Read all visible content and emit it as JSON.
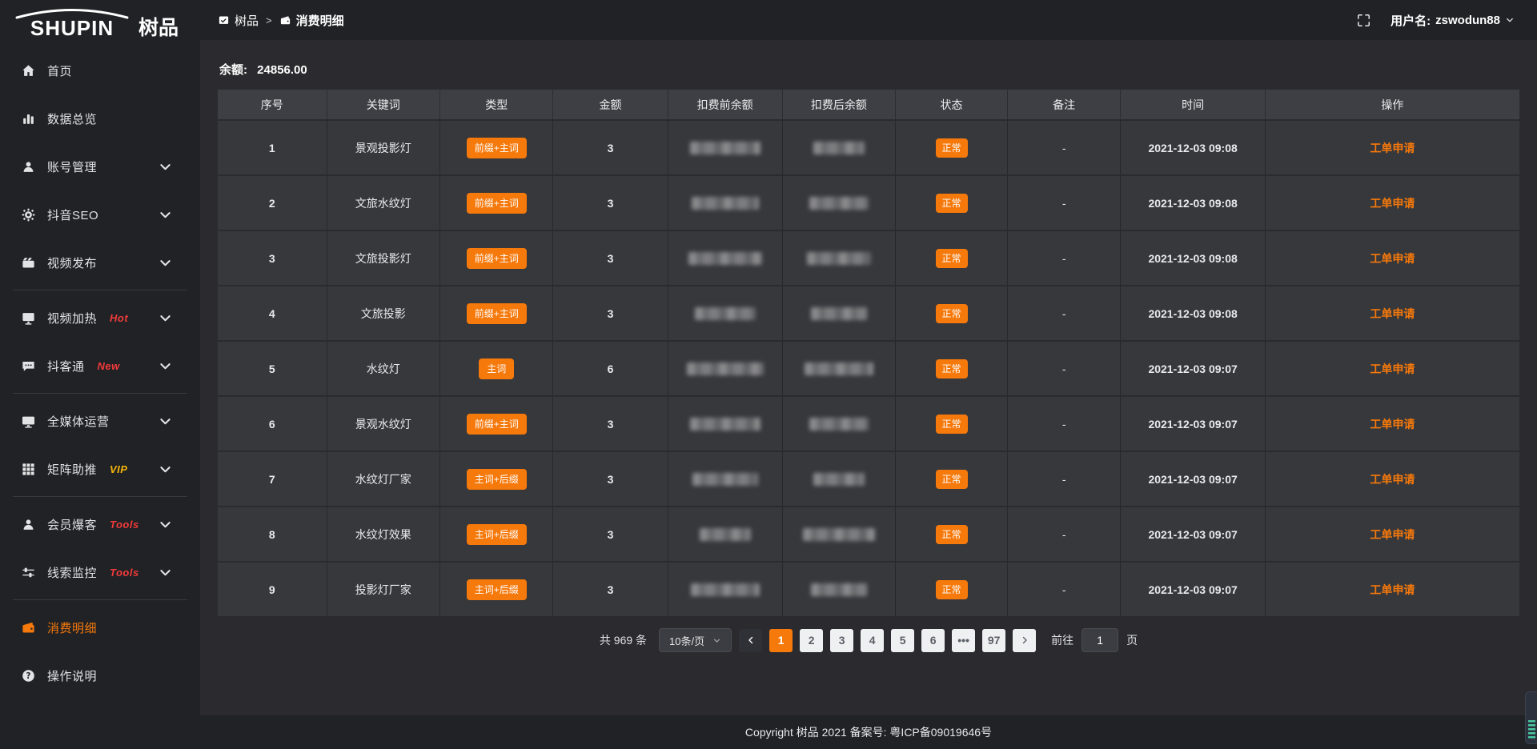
{
  "brand": {
    "name_en": "SHUPIN",
    "name_cn": "树品"
  },
  "topbar": {
    "breadcrumb": {
      "root": "树品",
      "separator": ">",
      "current": "消费明细"
    },
    "user_label": "用户名:",
    "username": "zswodun88"
  },
  "sidebar": {
    "items": [
      {
        "key": "home",
        "icon": "home-icon",
        "label": "首页"
      },
      {
        "key": "data-overview",
        "icon": "bar-chart-icon",
        "label": "数据总览"
      },
      {
        "key": "account-manage",
        "icon": "user-icon",
        "label": "账号管理",
        "chevron": true
      },
      {
        "key": "douyin-seo",
        "icon": "gear-icon",
        "label": "抖音SEO",
        "chevron": true
      },
      {
        "key": "video-publish",
        "icon": "video-publish-icon",
        "label": "视频发布",
        "chevron": true,
        "divider_after": true
      },
      {
        "key": "video-heat",
        "icon": "screen-heat-icon",
        "label": "视频加热",
        "badge": "Hot",
        "badge_color": "#f23a3a",
        "chevron": true
      },
      {
        "key": "douketong",
        "icon": "chat-icon",
        "label": "抖客通",
        "badge": "New",
        "badge_color": "#f23a3a",
        "chevron": true,
        "divider_after": true
      },
      {
        "key": "media-operation",
        "icon": "monitor-icon",
        "label": "全媒体运营",
        "chevron": true
      },
      {
        "key": "matrix-boost",
        "icon": "grid-icon",
        "label": "矩阵助推",
        "badge": "VIP",
        "badge_color": "#f5b50a",
        "chevron": true,
        "divider_after": true
      },
      {
        "key": "member-baoke",
        "icon": "member-icon",
        "label": "会员爆客",
        "badge": "Tools",
        "badge_color": "#f23a3a",
        "chevron": true
      },
      {
        "key": "clue-monitor",
        "icon": "sliders-icon",
        "label": "线索监控",
        "badge": "Tools",
        "badge_color": "#f23a3a",
        "chevron": true,
        "divider_after": true
      },
      {
        "key": "consume-detail",
        "icon": "wallet-icon",
        "label": "消费明细",
        "active": true
      },
      {
        "key": "operation-guide",
        "icon": "question-icon",
        "label": "操作说明"
      }
    ]
  },
  "main": {
    "balance_label": "余额:",
    "balance_value": "24856.00",
    "table": {
      "headers": [
        "序号",
        "关键词",
        "类型",
        "金额",
        "扣费前余额",
        "扣费后余额",
        "状态",
        "备注",
        "时间",
        "操作"
      ],
      "rows": [
        {
          "no": "1",
          "keyword": "景观投影灯",
          "type": "前缀+主词",
          "amount": "3",
          "status": "正常",
          "remark": "-",
          "time": "2021-12-03 09:08",
          "action": "工单申请"
        },
        {
          "no": "2",
          "keyword": "文旅水纹灯",
          "type": "前缀+主词",
          "amount": "3",
          "status": "正常",
          "remark": "-",
          "time": "2021-12-03 09:08",
          "action": "工单申请"
        },
        {
          "no": "3",
          "keyword": "文旅投影灯",
          "type": "前缀+主词",
          "amount": "3",
          "status": "正常",
          "remark": "-",
          "time": "2021-12-03 09:08",
          "action": "工单申请"
        },
        {
          "no": "4",
          "keyword": "文旅投影",
          "type": "前缀+主词",
          "amount": "3",
          "status": "正常",
          "remark": "-",
          "time": "2021-12-03 09:08",
          "action": "工单申请"
        },
        {
          "no": "5",
          "keyword": "水纹灯",
          "type": "主词",
          "amount": "6",
          "status": "正常",
          "remark": "-",
          "time": "2021-12-03 09:07",
          "action": "工单申请"
        },
        {
          "no": "6",
          "keyword": "景观水纹灯",
          "type": "前缀+主词",
          "amount": "3",
          "status": "正常",
          "remark": "-",
          "time": "2021-12-03 09:07",
          "action": "工单申请"
        },
        {
          "no": "7",
          "keyword": "水纹灯厂家",
          "type": "主词+后缀",
          "amount": "3",
          "status": "正常",
          "remark": "-",
          "time": "2021-12-03 09:07",
          "action": "工单申请"
        },
        {
          "no": "8",
          "keyword": "水纹灯效果",
          "type": "主词+后缀",
          "amount": "3",
          "status": "正常",
          "remark": "-",
          "time": "2021-12-03 09:07",
          "action": "工单申请"
        },
        {
          "no": "9",
          "keyword": "投影灯厂家",
          "type": "主词+后缀",
          "amount": "3",
          "status": "正常",
          "remark": "-",
          "time": "2021-12-03 09:07",
          "action": "工单申请"
        }
      ]
    },
    "pagination": {
      "total": "共 969 条",
      "page_size": "10条/页",
      "pages": [
        "1",
        "2",
        "3",
        "4",
        "5",
        "6",
        "•••",
        "97"
      ],
      "active_page": "1",
      "goto_label": "前往",
      "goto_value": "1",
      "goto_suffix": "页"
    }
  },
  "footer": {
    "copyright": "Copyright 树品 2021 备案号: 粤ICP备09019646号"
  },
  "colors": {
    "accent": "#f6790b",
    "badge_red": "#f23a3a",
    "badge_vip": "#f5b50a",
    "sidebar_bg": "#212225",
    "content_bg": "#2b2b2f",
    "row_bg": "#37383c",
    "header_row_bg": "#3e3f44"
  }
}
